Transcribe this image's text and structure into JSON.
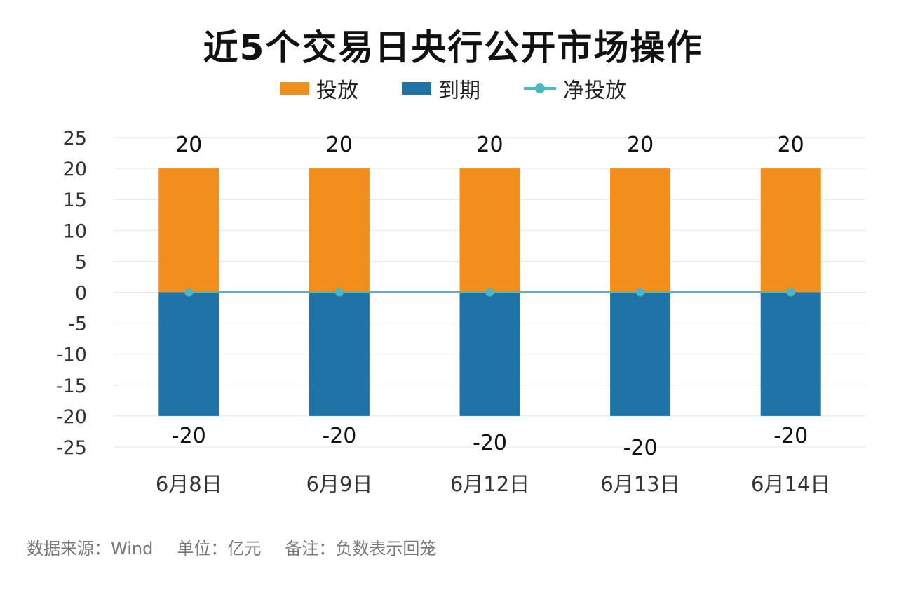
{
  "chart_data": {
    "type": "bar",
    "title": "近5个交易日央行公开市场操作",
    "categories": [
      "6月8日",
      "6月9日",
      "6月12日",
      "6月13日",
      "6月14日"
    ],
    "series": [
      {
        "name": "投放",
        "kind": "bar",
        "values": [
          20,
          20,
          20,
          20,
          20
        ],
        "color": "#F28E1C"
      },
      {
        "name": "到期",
        "kind": "bar",
        "values": [
          -20,
          -20,
          -20,
          -20,
          -20
        ],
        "color": "#1F73A6"
      },
      {
        "name": "净投放",
        "kind": "line",
        "values": [
          0,
          0,
          0,
          0,
          0
        ],
        "color": "#4DB8C4"
      }
    ],
    "data_labels": {
      "positive": [
        "20",
        "20",
        "20",
        "20",
        "20"
      ],
      "negative": [
        "-20",
        "-20",
        "-20",
        "-20",
        "-20"
      ]
    },
    "ylim": [
      -25,
      25
    ],
    "yticks": [
      "25",
      "20",
      "15",
      "10",
      "5",
      "0",
      "-5",
      "-10",
      "-15",
      "-20",
      "-25"
    ],
    "grid": true,
    "legend_position": "top"
  },
  "footer": {
    "source": "数据来源：Wind",
    "unit": "单位：亿元",
    "note": "备注：负数表示回笼"
  }
}
